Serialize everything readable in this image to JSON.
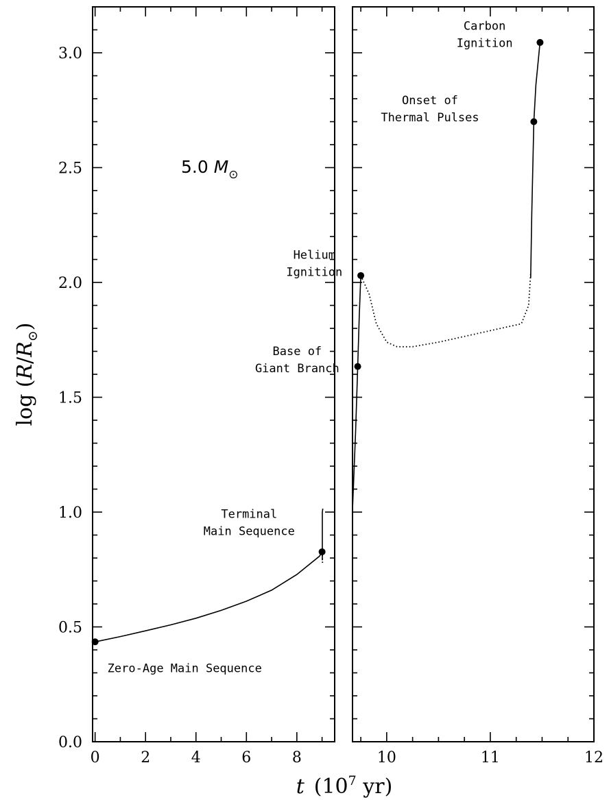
{
  "chart_data": {
    "type": "line",
    "title": "",
    "xlabel_main": "t",
    "xlabel_unit": "(10",
    "xlabel_exp": "7",
    "xlabel_end": " yr)",
    "ylabel_prefix": "log (",
    "ylabel_R": "R",
    "ylabel_slash": "/",
    "ylabel_Rsun": "R",
    "ylabel_sun": "⊙",
    "ylabel_end": ")",
    "mass_value": "5.0 ",
    "mass_M": "M",
    "mass_sun": "⊙",
    "ylim": [
      0.0,
      3.2
    ],
    "panels": [
      {
        "xlim": [
          -0.1,
          9.5
        ],
        "xticks": [
          0,
          2,
          4,
          6,
          8
        ],
        "xtick_labels": [
          "0",
          "2",
          "4",
          "6",
          "8"
        ],
        "minor_step": 1
      },
      {
        "xlim": [
          9.67,
          12.0
        ],
        "xticks": [
          10,
          11,
          12
        ],
        "xtick_labels": [
          "10",
          "11",
          "12"
        ],
        "minor_step": 0.25
      }
    ],
    "yticks": [
      0.0,
      0.5,
      1.0,
      1.5,
      2.0,
      2.5,
      3.0
    ],
    "ytick_labels": [
      "0.0",
      "0.5",
      "1.0",
      "1.5",
      "2.0",
      "2.5",
      "3.0"
    ],
    "series": [
      {
        "panel": 0,
        "style": "solid",
        "points": [
          [
            0,
            0.435
          ],
          [
            1,
            0.458
          ],
          [
            2,
            0.483
          ],
          [
            3,
            0.509
          ],
          [
            4,
            0.538
          ],
          [
            5,
            0.572
          ],
          [
            6,
            0.612
          ],
          [
            7,
            0.66
          ],
          [
            8,
            0.728
          ],
          [
            8.9,
            0.808
          ],
          [
            9.0,
            0.827
          ]
        ]
      },
      {
        "panel": 0,
        "style": "solid",
        "points": [
          [
            9.01,
            0.79
          ],
          [
            9.01,
            1.0
          ],
          [
            9.03,
            1.015
          ]
        ]
      },
      {
        "panel": 0,
        "style": "dotted",
        "points": [
          [
            9.01,
            0.827
          ],
          [
            9.02,
            0.77
          ]
        ]
      },
      {
        "panel": 1,
        "style": "solid",
        "points": [
          [
            9.67,
            1.01
          ],
          [
            9.7,
            1.35
          ],
          [
            9.72,
            1.634
          ],
          [
            9.735,
            1.85
          ],
          [
            9.75,
            2.03
          ]
        ]
      },
      {
        "panel": 1,
        "style": "dotted",
        "points": [
          [
            9.75,
            2.03
          ],
          [
            9.83,
            1.95
          ],
          [
            9.9,
            1.82
          ],
          [
            10.0,
            1.74
          ],
          [
            10.1,
            1.72
          ],
          [
            10.25,
            1.72
          ],
          [
            10.5,
            1.74
          ],
          [
            10.8,
            1.77
          ],
          [
            11.1,
            1.8
          ],
          [
            11.3,
            1.82
          ],
          [
            11.37,
            1.9
          ],
          [
            11.39,
            2.04
          ]
        ]
      },
      {
        "panel": 1,
        "style": "solid",
        "points": [
          [
            11.39,
            2.02
          ],
          [
            11.4,
            2.3
          ],
          [
            11.41,
            2.5
          ],
          [
            11.42,
            2.7
          ],
          [
            11.44,
            2.86
          ],
          [
            11.48,
            3.045
          ]
        ]
      }
    ],
    "milestones": [
      {
        "panel": 0,
        "x": 0.0,
        "y": 0.435,
        "label": [
          "Zero-Age Main Sequence"
        ]
      },
      {
        "panel": 0,
        "x": 9.0,
        "y": 0.827,
        "label": [
          "Terminal",
          "Main Sequence"
        ]
      },
      {
        "panel": 1,
        "x": 9.72,
        "y": 1.634,
        "label": [
          "Base of",
          "Giant Branch"
        ]
      },
      {
        "panel": 1,
        "x": 9.75,
        "y": 2.03,
        "label": [
          "Helium",
          "Ignition"
        ]
      },
      {
        "panel": 1,
        "x": 11.42,
        "y": 2.7,
        "label": [
          "Onset of",
          "Thermal Pulses"
        ]
      },
      {
        "panel": 1,
        "x": 11.48,
        "y": 3.045,
        "label": [
          "Carbon",
          "Ignition"
        ]
      }
    ]
  }
}
